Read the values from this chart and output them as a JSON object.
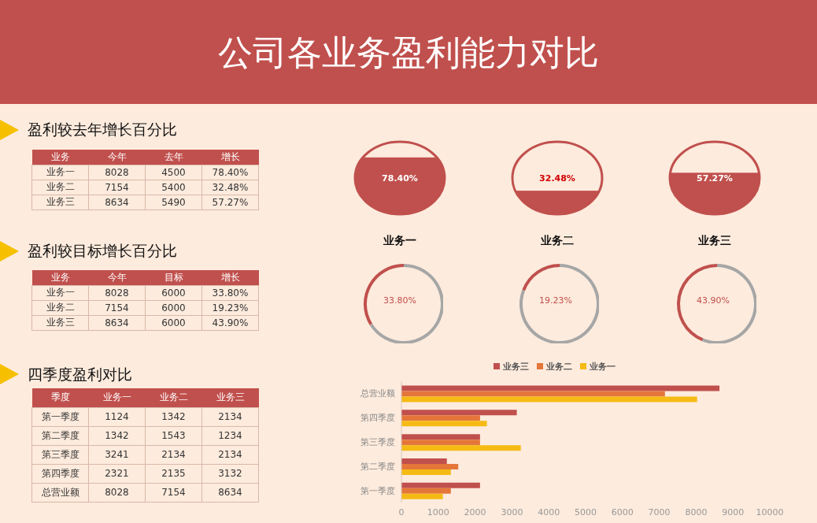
{
  "chart_data": [
    {
      "type": "other",
      "title": "公司各业务盈利能力对比",
      "subtitle": "盈利较去年增长百分比",
      "xlabel": "业务",
      "data_labels": true,
      "categories": [
        "业务一",
        "业务二",
        "业务三"
      ],
      "series": [
        {
          "name": "今年",
          "values": [
            8028,
            7154,
            8634
          ]
        },
        {
          "name": "去年",
          "values": [
            4500,
            5400,
            5490
          ]
        },
        {
          "name": "增长",
          "values": [
            78.4,
            32.48,
            57.27
          ],
          "value_labels": [
            "78.40%",
            "32.48%",
            "57.27%"
          ]
        }
      ]
    },
    {
      "type": "other",
      "subtitle": "盈利较目标增长百分比",
      "xlabel": "业务",
      "data_labels": true,
      "categories": [
        "业务一",
        "业务二",
        "业务三"
      ],
      "series": [
        {
          "name": "今年",
          "values": [
            8028,
            7154,
            8634
          ]
        },
        {
          "name": "目标",
          "values": [
            6000,
            6000,
            6000
          ]
        },
        {
          "name": "增长",
          "values": [
            33.8,
            19.23,
            43.9
          ],
          "value_labels": [
            "33.80%",
            "19.23%",
            "43.90%"
          ]
        }
      ]
    },
    {
      "type": "other",
      "subtitle": "四季度盈利对比",
      "xlabel": "季度",
      "data_labels": true,
      "categories": [
        "第一季度",
        "第二季度",
        "第三季度",
        "第四季度",
        "总营业额"
      ],
      "series": [
        {
          "name": "业务一",
          "values": [
            1124,
            1342,
            3241,
            2321,
            8028
          ]
        },
        {
          "name": "业务二",
          "values": [
            1342,
            1543,
            2134,
            2135,
            7154
          ]
        },
        {
          "name": "业务三",
          "values": [
            2134,
            1234,
            2134,
            3132,
            8634
          ]
        }
      ]
    },
    {
      "type": "other",
      "categories": [
        "业务一",
        "业务二",
        "业务三"
      ],
      "values": [
        78.4,
        32.48,
        57.27
      ],
      "value_labels": [
        "78.40%",
        "32.48%",
        "57.27%"
      ],
      "color": "#c0504d"
    },
    {
      "type": "donut",
      "categories": [
        null,
        null
      ],
      "values": [
        33.8,
        66.2
      ],
      "colors": [
        "#c0504d",
        "#a6a6a6"
      ],
      "value_labels": [
        "33.80%",
        null
      ]
    },
    {
      "type": "donut",
      "categories": [
        null,
        null
      ],
      "values": [
        19.23,
        80.77
      ],
      "colors": [
        "#c0504d",
        "#a6a6a6"
      ],
      "value_labels": [
        "19.23%",
        null
      ]
    },
    {
      "type": "donut",
      "categories": [
        null,
        null
      ],
      "values": [
        43.9,
        56.1
      ],
      "colors": [
        "#c0504d",
        "#a6a6a6"
      ],
      "value_labels": [
        "43.90%",
        null
      ]
    },
    {
      "type": "bar",
      "orientation": "horizontal",
      "categories": [
        "总营业额",
        "第四季度",
        "第三季度",
        "第二季度",
        "第一季度"
      ],
      "xlim": [
        0,
        10000
      ],
      "xticks": [
        0,
        1000,
        2000,
        3000,
        4000,
        5000,
        6000,
        7000,
        8000,
        9000,
        10000
      ],
      "legend": "top",
      "series": [
        {
          "name": "业务三",
          "color": "#c0504d",
          "values": [
            8634,
            3132,
            2134,
            1234,
            2134
          ]
        },
        {
          "name": "业务二",
          "color": "#e5763a",
          "values": [
            7154,
            2135,
            2134,
            1543,
            1342
          ]
        },
        {
          "name": "业务一",
          "color": "#f5bb14",
          "values": [
            8028,
            2321,
            3241,
            1342,
            1124
          ]
        }
      ]
    }
  ]
}
